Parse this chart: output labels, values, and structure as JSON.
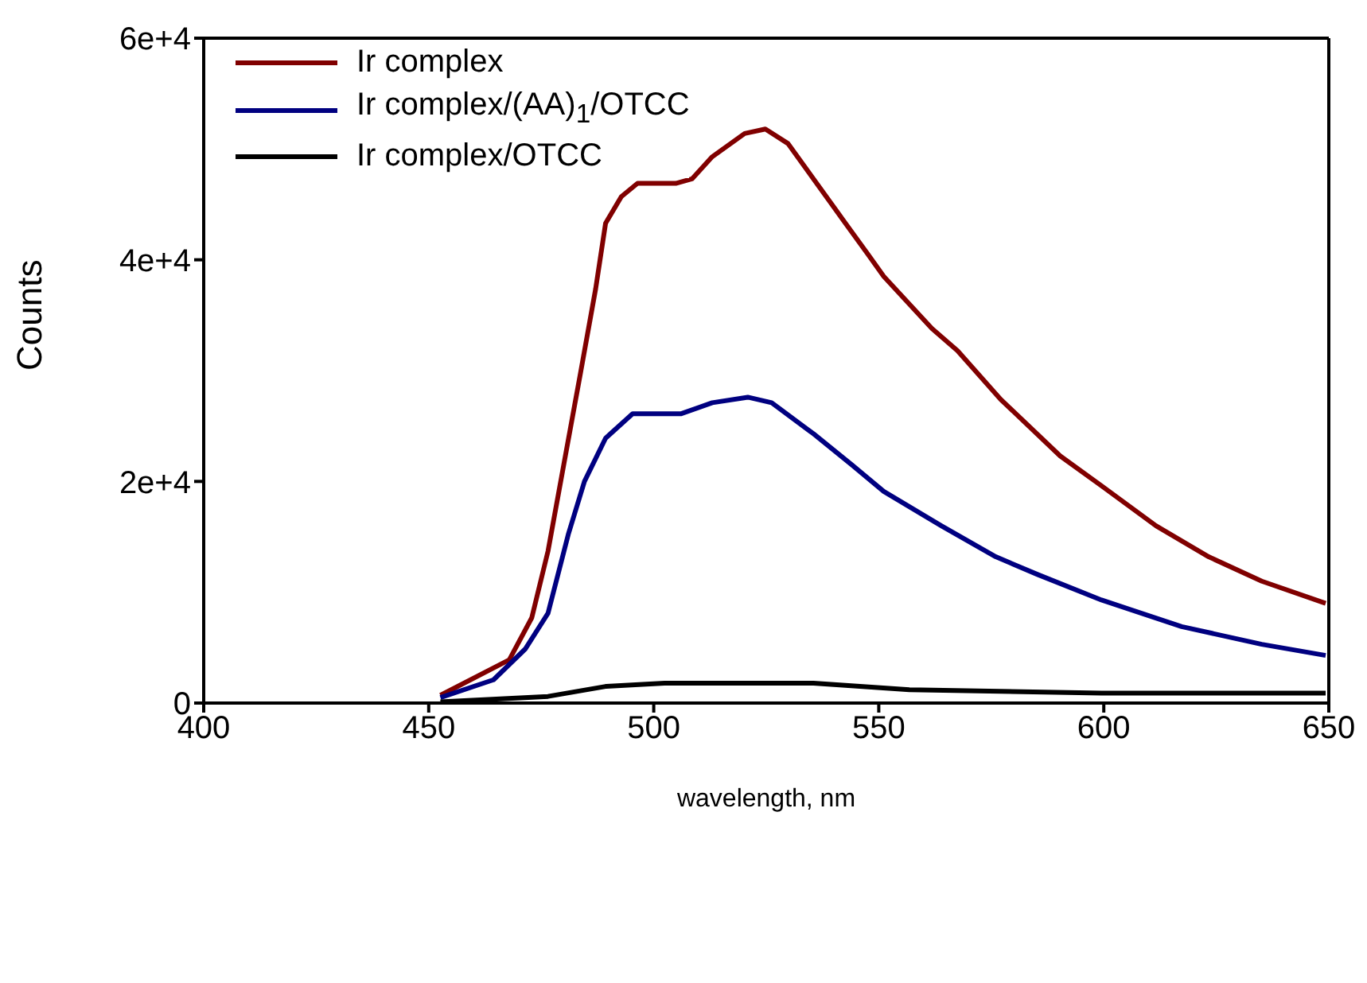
{
  "chart_data": {
    "type": "line",
    "xlabel": "wavelength, nm",
    "ylabel": "Counts",
    "xlim": [
      400,
      650
    ],
    "xticks": [
      400,
      450,
      500,
      550,
      600,
      650
    ],
    "ylim": [
      0,
      60000
    ],
    "yticks": [
      0,
      {
        "value": 20000,
        "label": "2e+4"
      },
      {
        "value": 40000,
        "label": "4e+4"
      },
      {
        "value": 60000,
        "label": "6e+4"
      }
    ],
    "legend": "top left",
    "marker": "none",
    "line_style": "solid",
    "series": [
      {
        "name": "Ir complex",
        "color": "#800000",
        "x": [
          452.6,
          467.9,
          472.9,
          476.5,
          480,
          483.6,
          487.1,
          489.3,
          492.8,
          496.4,
          504.9,
          508.5,
          513,
          520.2,
          524.8,
          529.8,
          535.5,
          542.6,
          547.6,
          551.1,
          561.8,
          567.5,
          577.1,
          590.3,
          599.5,
          611.6,
          623.3,
          635.1,
          649.3
        ],
        "values": [
          700,
          3900,
          7700,
          13700,
          21500,
          29500,
          37400,
          43300,
          45700,
          46900,
          46900,
          47300,
          49300,
          51400,
          51800,
          50500,
          47300,
          43300,
          40500,
          38500,
          33800,
          31800,
          27400,
          22300,
          19600,
          16000,
          13200,
          11000,
          9000
        ]
      },
      {
        "name": "Ir complex/(AA)$_{1}$/OTCC",
        "color": "#000080",
        "x": [
          452.6,
          464.4,
          471.5,
          476.5,
          481,
          484.6,
          489.3,
          495.3,
          506,
          513,
          520.9,
          526.2,
          535.5,
          544,
          551.1,
          563.9,
          576,
          585.3,
          599.5,
          617.3,
          635.1,
          649.3
        ],
        "values": [
          500,
          2100,
          4900,
          8100,
          15200,
          20000,
          23900,
          26100,
          26100,
          27100,
          27600,
          27100,
          24300,
          21500,
          19100,
          16000,
          13200,
          11600,
          9300,
          6900,
          5300,
          4300
        ]
      },
      {
        "name": "Ir complex/OTCC",
        "color": "#000000",
        "x": [
          452.6,
          476.5,
          489.3,
          502.4,
          535.5,
          556.8,
          599.5,
          649.3
        ],
        "values": [
          100,
          600,
          1500,
          1800,
          1800,
          1200,
          900,
          900
        ]
      }
    ]
  }
}
